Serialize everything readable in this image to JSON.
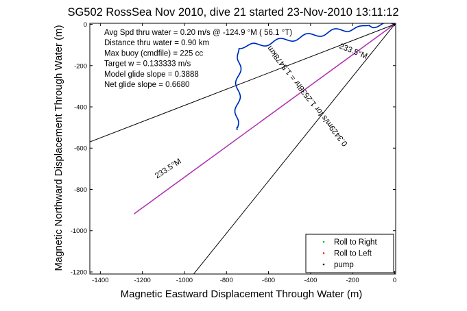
{
  "chart_data": {
    "type": "line",
    "title": "SG502 RossSea Nov 2010, dive 21 started 23-Nov-2010 13:11:12",
    "xlabel": "Magnetic Eastward Displacement Through Water (m)",
    "ylabel": "Magnetic Northward Displacement Through Water (m)",
    "xlim": [
      -1450,
      5
    ],
    "ylim": [
      -1210,
      5
    ],
    "x_ticks": [
      -1400,
      -1200,
      -1000,
      -800,
      -600,
      -400,
      -200,
      0
    ],
    "y_ticks": [
      0,
      -200,
      -400,
      -600,
      -800,
      -1000,
      -1200
    ],
    "grid": false,
    "legend_position": "bottom-right",
    "info_lines": [
      "Avg Spd thru water =  0.20 m/s @ -124.9   °M ( 56.1 °T)",
      "Distance thru water =  0.90 km",
      "Max buoy (cmdfile) = 225 cc",
      "Target w = 0.133333 m/s",
      "Model glide slope = 0.3888",
      "Net glide slope = 0.6680"
    ],
    "reference_lines": [
      {
        "from": [
          0,
          0
        ],
        "to": [
          -1450,
          -570
        ],
        "color": "#000000"
      },
      {
        "from": [
          0,
          0
        ],
        "to": [
          -960,
          -1215
        ],
        "color": "#000000"
      }
    ],
    "heading_line": {
      "from": [
        0,
        0
      ],
      "to": [
        -1240,
        -920
      ],
      "color": "#cc00cc",
      "label": "0.3429m/s for 1.2538hr = 1.5478km"
    },
    "line_labels": [
      "233.5°M",
      "233.5°M"
    ],
    "track": {
      "start": [
        0,
        0
      ],
      "waypoints": [
        [
          -120,
          -5
        ],
        [
          -740,
          -115
        ],
        [
          -750,
          -500
        ],
        [
          -745,
          -510
        ]
      ],
      "wiggle_amplitude": 12,
      "color": "#0000cc",
      "highlight_color": "#00aaaa"
    },
    "legend": [
      {
        "label": "Roll to Right",
        "color": "#00bb00",
        "marker": "."
      },
      {
        "label": "Roll to Left",
        "color": "#ff0000",
        "marker": "."
      },
      {
        "label": "pump",
        "color": "#000000",
        "marker": "."
      }
    ]
  }
}
